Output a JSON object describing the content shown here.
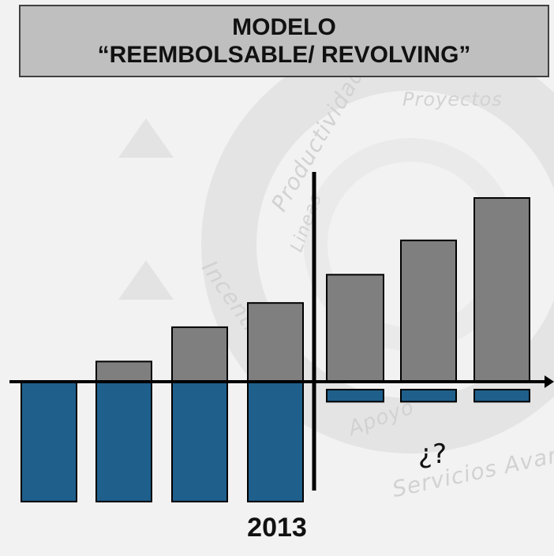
{
  "title": {
    "line1": "MODELO",
    "line2": "“REEMBOLSABLE/ REVOLVING”"
  },
  "background_words": [
    "Productividad",
    "Proyectos",
    "Lineas",
    "Incentivos",
    "Apoyo",
    "Servicios Avanz"
  ],
  "colors": {
    "positive": "#7f7f7f",
    "negative": "#1f5f8b",
    "axis": "#000000",
    "title_bg": "#bfbfbf"
  },
  "chart_data": {
    "type": "bar",
    "categories": [
      "",
      "",
      "",
      "",
      "",
      "",
      ""
    ],
    "series": [
      {
        "values": [
          0,
          1,
          2.7,
          3.9,
          5.3,
          7.0,
          9.1
        ]
      },
      {
        "values": [
          -5.9,
          -5.9,
          -5.9,
          -5.9,
          -0.6,
          -0.6,
          -0.6
        ]
      }
    ],
    "ylim": [
      -6,
      9.5
    ],
    "divider_after_index": 3,
    "year_label": "2013",
    "annotation": "¿?"
  }
}
